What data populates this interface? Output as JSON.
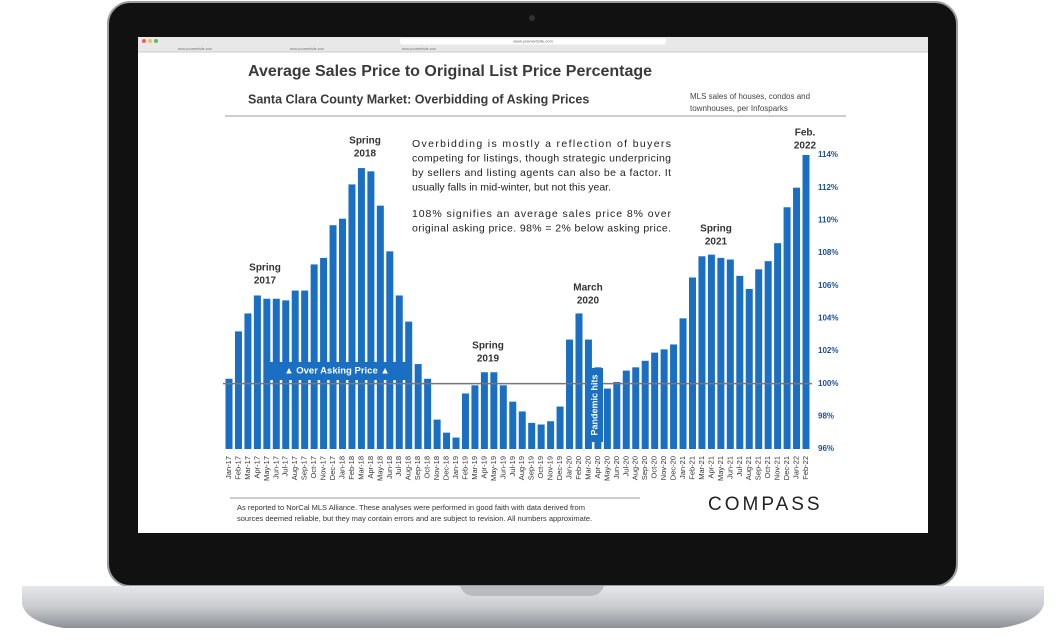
{
  "browser": {
    "url": "www.yourwebsite.com",
    "tabs": [
      "www.yourwebsite.com",
      "www.yourwebsite.com",
      "www.yourwebsite.com"
    ]
  },
  "chart_data": {
    "type": "bar",
    "title": "Average Sales Price to Original List Price Percentage",
    "subtitle": "Santa Clara County Market: Overbidding of Asking Prices",
    "source_note": [
      "MLS sales of houses, condos and",
      "townhouses, per Infosparks"
    ],
    "description": [
      [
        "Overbidding is mostly a reflection of buyers",
        "competing for listings, though strategic underpricing",
        "by sellers and listing agents can also be a factor. It",
        "usually falls in mid-winter, but not this year."
      ],
      [
        "108% signifies an average sales price 8% over",
        "original asking price. 98% = 2% below asking price."
      ]
    ],
    "annotations": [
      [
        "Spring",
        "2017"
      ],
      [
        "Spring",
        "2018"
      ],
      [
        "Spring",
        "2019"
      ],
      [
        "March",
        "2020"
      ],
      [
        "Spring",
        "2021"
      ],
      [
        "Feb.",
        "2022"
      ]
    ],
    "reference_line": {
      "value": 100,
      "label": "▲ Over Asking Price ▲"
    },
    "event_label": "Pandemic hits",
    "footer": [
      "As reported to NorCal MLS Alliance. These analyses were performed in good faith with data derived from",
      "sources deemed reliable, but they may contain errors and are subject to revision. All numbers approximate."
    ],
    "logo": "COMPASS",
    "color": "#1b6fc2",
    "categories": [
      "Jan-17",
      "Feb-17",
      "Mar-17",
      "Apr-17",
      "May-17",
      "Jun-17",
      "Jul-17",
      "Aug-17",
      "Sep-17",
      "Oct-17",
      "Nov-17",
      "Dec-17",
      "Jan-18",
      "Feb-18",
      "Mar-18",
      "Apr-18",
      "May-18",
      "Jun-18",
      "Jul-18",
      "Aug-18",
      "Sep-18",
      "Oct-18",
      "Nov-18",
      "Dec-18",
      "Jan-19",
      "Feb-19",
      "Mar-19",
      "Apr-19",
      "May-19",
      "Jun-19",
      "Jul-19",
      "Aug-19",
      "Sep-19",
      "Oct-19",
      "Nov-19",
      "Dec-19",
      "Jan-20",
      "Feb-20",
      "Mar-20",
      "Apr-20",
      "May-20",
      "Jun-20",
      "Jul-20",
      "Aug-20",
      "Sep-20",
      "Oct-20",
      "Nov-20",
      "Dec-20",
      "Jan-21",
      "Feb-21",
      "Mar-21",
      "Apr-21",
      "May-21",
      "Jun-21",
      "Jul-21",
      "Aug-21",
      "Sep-21",
      "Oct-21",
      "Nov-21",
      "Dec-21",
      "Jan-22",
      "Feb-22"
    ],
    "values": [
      100.3,
      103.2,
      104.3,
      105.4,
      105.2,
      105.2,
      105.1,
      105.7,
      105.7,
      107.3,
      107.7,
      109.7,
      110.1,
      112.2,
      113.2,
      113.0,
      110.9,
      108.1,
      105.4,
      103.8,
      101.2,
      100.3,
      97.8,
      97.0,
      96.7,
      99.4,
      99.9,
      100.7,
      100.7,
      99.9,
      98.9,
      98.3,
      97.6,
      97.5,
      97.7,
      98.6,
      102.7,
      104.3,
      102.7,
      101.0,
      99.7,
      100.1,
      100.8,
      101.0,
      101.4,
      101.9,
      102.1,
      102.4,
      104.0,
      106.5,
      107.8,
      107.9,
      107.7,
      107.6,
      106.6,
      105.8,
      107.0,
      107.5,
      108.6,
      110.8,
      112.0,
      114.0
    ],
    "ylim": [
      96,
      114.5
    ],
    "yticks": [
      {
        "value": 96,
        "label": "96%"
      },
      {
        "value": 98,
        "label": "98%"
      },
      {
        "value": 100,
        "label": "100%"
      },
      {
        "value": 102,
        "label": "102%"
      },
      {
        "value": 104,
        "label": "104%"
      },
      {
        "value": 106,
        "label": "106%"
      },
      {
        "value": 108,
        "label": "108%"
      },
      {
        "value": 110,
        "label": "110%"
      },
      {
        "value": 112,
        "label": "112%"
      },
      {
        "value": 114,
        "label": "114%"
      }
    ],
    "grid": false
  }
}
